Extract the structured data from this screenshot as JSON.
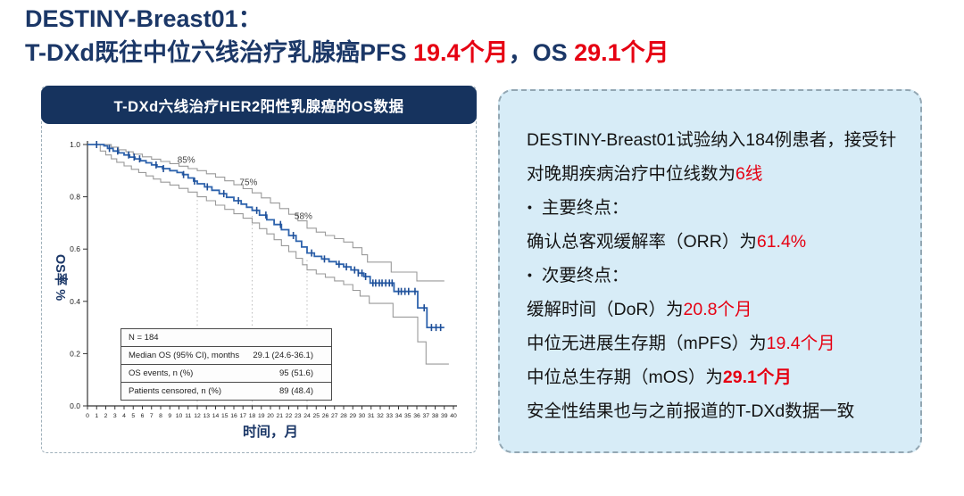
{
  "title": {
    "line1": "DESTINY-Breast01：",
    "line2_segments": [
      {
        "text": "T-DXd既往中位六线治疗乳腺癌PFS "
      },
      {
        "text": "19.4个月",
        "red": true
      },
      {
        "text": "，OS "
      },
      {
        "text": "29.1个月",
        "red": true
      }
    ]
  },
  "colors": {
    "navy": "#1b3767",
    "header_bar": "#16335e",
    "red": "#e60012",
    "panel_blue": "#d7ecf7",
    "curve_blue": "#2e63ad",
    "ci_gray": "#9a9a9a",
    "axis": "#333333"
  },
  "chart_data": {
    "type": "line",
    "subtype": "kaplan-meier-step",
    "title": "T-DXd六线治疗HER2阳性乳腺癌的OS数据",
    "xlabel": "时间，月",
    "ylabel": "OS率 %",
    "xlim": [
      0,
      40
    ],
    "ylim": [
      0.0,
      1.0
    ],
    "x_ticks": [
      0,
      1,
      2,
      3,
      4,
      5,
      6,
      7,
      8,
      9,
      10,
      11,
      12,
      13,
      14,
      15,
      16,
      17,
      18,
      19,
      20,
      21,
      22,
      23,
      24,
      25,
      26,
      27,
      28,
      29,
      30,
      31,
      32,
      33,
      34,
      35,
      36,
      37,
      38,
      39,
      40
    ],
    "y_ticks": [
      "1.0",
      "0.8",
      "0.6",
      "0.4",
      "0.2",
      "0.0"
    ],
    "grid": false,
    "legend": "none",
    "series": [
      {
        "name": "OS estimate",
        "color": "#2e63ad",
        "width": 1.8,
        "points": [
          [
            0,
            1.0
          ],
          [
            1.8,
            0.995
          ],
          [
            2.2,
            0.985
          ],
          [
            2.8,
            0.975
          ],
          [
            3.4,
            0.968
          ],
          [
            4.0,
            0.96
          ],
          [
            4.6,
            0.952
          ],
          [
            5.2,
            0.945
          ],
          [
            5.8,
            0.938
          ],
          [
            6.4,
            0.93
          ],
          [
            7.0,
            0.922
          ],
          [
            7.6,
            0.915
          ],
          [
            8.2,
            0.908
          ],
          [
            9.0,
            0.9
          ],
          [
            9.8,
            0.893
          ],
          [
            10.4,
            0.885
          ],
          [
            11.0,
            0.872
          ],
          [
            11.6,
            0.86
          ],
          [
            12.0,
            0.85
          ],
          [
            12.8,
            0.838
          ],
          [
            13.6,
            0.825
          ],
          [
            14.4,
            0.812
          ],
          [
            15.2,
            0.798
          ],
          [
            16.0,
            0.785
          ],
          [
            16.8,
            0.772
          ],
          [
            17.4,
            0.76
          ],
          [
            18.0,
            0.748
          ],
          [
            18.8,
            0.73
          ],
          [
            19.6,
            0.712
          ],
          [
            20.4,
            0.694
          ],
          [
            21.2,
            0.674
          ],
          [
            22.0,
            0.652
          ],
          [
            22.8,
            0.63
          ],
          [
            23.4,
            0.608
          ],
          [
            24.0,
            0.585
          ],
          [
            24.8,
            0.572
          ],
          [
            25.6,
            0.562
          ],
          [
            26.4,
            0.552
          ],
          [
            27.2,
            0.542
          ],
          [
            28.0,
            0.532
          ],
          [
            28.8,
            0.52
          ],
          [
            29.6,
            0.508
          ],
          [
            30.2,
            0.495
          ],
          [
            30.9,
            0.47
          ],
          [
            33.5,
            0.438
          ],
          [
            36.1,
            0.375
          ],
          [
            37.1,
            0.3
          ],
          [
            39.0,
            0.3
          ]
        ]
      },
      {
        "name": "95% CI upper",
        "color": "#9a9a9a",
        "width": 1.1,
        "points": [
          [
            0,
            1.0
          ],
          [
            2.6,
            0.99
          ],
          [
            3.4,
            0.98
          ],
          [
            4.2,
            0.972
          ],
          [
            5.0,
            0.963
          ],
          [
            6.0,
            0.953
          ],
          [
            7.0,
            0.944
          ],
          [
            8.0,
            0.935
          ],
          [
            9.0,
            0.927
          ],
          [
            10.0,
            0.917
          ],
          [
            11.0,
            0.908
          ],
          [
            12.0,
            0.9
          ],
          [
            13.0,
            0.888
          ],
          [
            14.0,
            0.875
          ],
          [
            15.0,
            0.861
          ],
          [
            16.0,
            0.846
          ],
          [
            17.0,
            0.831
          ],
          [
            18.0,
            0.815
          ],
          [
            19.0,
            0.796
          ],
          [
            20.0,
            0.776
          ],
          [
            21.0,
            0.755
          ],
          [
            22.0,
            0.733
          ],
          [
            23.0,
            0.708
          ],
          [
            24.0,
            0.68
          ],
          [
            25.0,
            0.665
          ],
          [
            26.0,
            0.652
          ],
          [
            27.0,
            0.64
          ],
          [
            28.0,
            0.627
          ],
          [
            29.0,
            0.605
          ],
          [
            30.0,
            0.578
          ],
          [
            30.6,
            0.55
          ],
          [
            33.2,
            0.512
          ],
          [
            36.0,
            0.478
          ],
          [
            39.0,
            0.478
          ]
        ]
      },
      {
        "name": "95% CI lower",
        "color": "#9a9a9a",
        "width": 1.1,
        "points": [
          [
            0,
            1.0
          ],
          [
            1.4,
            0.975
          ],
          [
            2.0,
            0.96
          ],
          [
            2.6,
            0.945
          ],
          [
            3.2,
            0.932
          ],
          [
            4.0,
            0.918
          ],
          [
            4.8,
            0.905
          ],
          [
            5.6,
            0.893
          ],
          [
            6.4,
            0.88
          ],
          [
            7.2,
            0.868
          ],
          [
            8.0,
            0.856
          ],
          [
            9.0,
            0.845
          ],
          [
            10.0,
            0.832
          ],
          [
            11.0,
            0.818
          ],
          [
            12.0,
            0.8
          ],
          [
            13.0,
            0.785
          ],
          [
            14.0,
            0.768
          ],
          [
            15.0,
            0.752
          ],
          [
            16.0,
            0.735
          ],
          [
            17.0,
            0.718
          ],
          [
            18.0,
            0.7
          ],
          [
            18.8,
            0.678
          ],
          [
            19.6,
            0.658
          ],
          [
            20.4,
            0.636
          ],
          [
            21.2,
            0.613
          ],
          [
            22.0,
            0.59
          ],
          [
            22.8,
            0.565
          ],
          [
            23.5,
            0.54
          ],
          [
            24.0,
            0.52
          ],
          [
            25.0,
            0.505
          ],
          [
            26.0,
            0.492
          ],
          [
            27.0,
            0.478
          ],
          [
            28.0,
            0.464
          ],
          [
            29.0,
            0.442
          ],
          [
            29.8,
            0.42
          ],
          [
            30.8,
            0.392
          ],
          [
            33.4,
            0.34
          ],
          [
            36.1,
            0.245
          ],
          [
            37.0,
            0.16
          ],
          [
            39.5,
            0.16
          ]
        ]
      }
    ],
    "censor_months": [
      1.0,
      2.4,
      3.3,
      4.5,
      5.1,
      5.7,
      7.5,
      8.3,
      10.5,
      11.7,
      13.1,
      14.9,
      16.5,
      18.5,
      19.5,
      21.1,
      22.5,
      24.5,
      25.9,
      27.5,
      28.3,
      29.2,
      29.6,
      30.0,
      30.4,
      31.2,
      31.5,
      31.9,
      32.2,
      32.6,
      33.0,
      33.3,
      34.0,
      34.3,
      34.7,
      35.1,
      35.8,
      36.8,
      37.6,
      38.1,
      38.6
    ],
    "annotations": [
      {
        "text": "85%",
        "x": 10.8,
        "y": 0.93
      },
      {
        "text": "75%",
        "x": 17.6,
        "y": 0.845
      },
      {
        "text": "58%",
        "x": 23.6,
        "y": 0.715
      }
    ],
    "reference_lines": [
      {
        "x": 12,
        "value": 0.85
      },
      {
        "x": 18,
        "value": 0.748
      },
      {
        "x": 24,
        "value": 0.585
      }
    ],
    "table": {
      "rows": [
        {
          "label": "N = 184",
          "value": ""
        },
        {
          "label": "Median OS (95% CI), months",
          "value": "29.1 (24.6-36.1)"
        },
        {
          "label": "OS events, n (%)",
          "value": "95 (51.6)"
        },
        {
          "label": "Patients censored, n (%)",
          "value": "89 (48.4)"
        }
      ]
    }
  },
  "right_panel": {
    "bullet_char": "•",
    "lines": [
      {
        "segments": [
          {
            "text": "DESTINY-Breast01试验纳入184例患者，接受针对晚期疾病治疗中位线数为"
          },
          {
            "text": "6线",
            "red": true
          }
        ]
      },
      {
        "bullet": true,
        "segments": [
          {
            "text": "主要终点："
          }
        ]
      },
      {
        "segments": [
          {
            "text": "确认总客观缓解率（ORR）为"
          },
          {
            "text": "61.4%",
            "red": true
          }
        ]
      },
      {
        "bullet": true,
        "segments": [
          {
            "text": "次要终点："
          }
        ]
      },
      {
        "segments": [
          {
            "text": "缓解时间（DoR）为"
          },
          {
            "text": "20.8个月",
            "red": true
          }
        ]
      },
      {
        "segments": [
          {
            "text": "中位无进展生存期（mPFS）为"
          },
          {
            "text": "19.4个月",
            "red": true
          }
        ]
      },
      {
        "segments": [
          {
            "text": "中位总生存期（mOS）为"
          },
          {
            "text": "29.1个月",
            "red": true,
            "bold": true
          }
        ]
      },
      {
        "segments": [
          {
            "text": "安全性结果也与之前报道的T-DXd数据一致"
          }
        ]
      }
    ]
  }
}
